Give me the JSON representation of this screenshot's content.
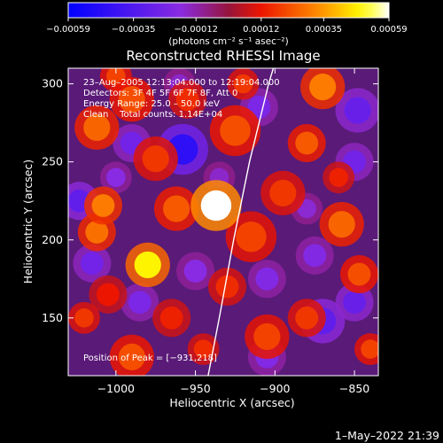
{
  "chart_data": {
    "type": "heatmap",
    "title": "Reconstructed RHESSI Image",
    "xlabel": "Heliocentric X (arcsec)",
    "ylabel": "Heliocentric Y (arcsec)",
    "xlim": [
      -1030,
      -835
    ],
    "ylim": [
      113,
      310
    ],
    "x_ticks": [
      -1000,
      -950,
      -900,
      -850
    ],
    "x_tick_labels": [
      "−1000",
      "−950",
      "−900",
      "−850"
    ],
    "y_ticks": [
      150,
      200,
      250,
      300
    ],
    "y_tick_labels": [
      "150",
      "200",
      "250",
      "300"
    ],
    "colorbar": {
      "range": [
        -0.00059,
        0.00059
      ],
      "ticks": [
        -0.00059,
        -0.00035,
        -0.00012,
        0.00012,
        0.00035,
        0.00059
      ],
      "tick_labels": [
        "−0.00059",
        "−0.00035",
        "−0.00012",
        "0.00012",
        "0.00035",
        "0.00059"
      ],
      "unit": "(photons cm⁻² s⁻¹ asec⁻²)",
      "colors": [
        "#0000ff",
        "#8a2be2",
        "#ff0000",
        "#ff8c00",
        "#ffff00",
        "#ffffff"
      ]
    },
    "annotations": [
      "23–Aug–2005 12:13:04.000 to 12:19:04.000",
      "Detectors: 3F 4F 5F 6F 7F 8F, Att 0",
      "Energy Range: 25.0 – 50.0 keV",
      "Clean    Total counts: 1.14E+04"
    ],
    "peak_label": "Position of Peak = [−931,218]",
    "peak": [
      -931,
      218
    ],
    "limb_curve": [
      [
        -942,
        113
      ],
      [
        -935,
        150
      ],
      [
        -926,
        200
      ],
      [
        -916,
        250
      ],
      [
        -904,
        300
      ],
      [
        -901,
        310
      ]
    ],
    "blobs": [
      {
        "x": -937,
        "y": 222,
        "r": 16,
        "value": 0.00059
      },
      {
        "x": -980,
        "y": 184,
        "r": 14,
        "value": 0.00048
      },
      {
        "x": -1008,
        "y": 222,
        "r": 12,
        "value": 0.0003
      },
      {
        "x": -1012,
        "y": 205,
        "r": 12,
        "value": 0.00028
      },
      {
        "x": -990,
        "y": 290,
        "r": 14,
        "value": 0.00022
      },
      {
        "x": -1012,
        "y": 272,
        "r": 14,
        "value": 0.00026
      },
      {
        "x": -975,
        "y": 252,
        "r": 14,
        "value": 0.00018
      },
      {
        "x": -962,
        "y": 220,
        "r": 14,
        "value": 0.00024
      },
      {
        "x": -955,
        "y": 290,
        "r": 12,
        "value": 0.00016
      },
      {
        "x": -925,
        "y": 270,
        "r": 16,
        "value": 0.00022
      },
      {
        "x": -915,
        "y": 202,
        "r": 16,
        "value": 0.0002
      },
      {
        "x": -895,
        "y": 230,
        "r": 14,
        "value": 0.00018
      },
      {
        "x": -870,
        "y": 298,
        "r": 14,
        "value": 0.0003
      },
      {
        "x": -880,
        "y": 262,
        "r": 12,
        "value": 0.00024
      },
      {
        "x": -858,
        "y": 210,
        "r": 14,
        "value": 0.00026
      },
      {
        "x": -847,
        "y": 178,
        "r": 12,
        "value": 0.00022
      },
      {
        "x": -905,
        "y": 138,
        "r": 14,
        "value": 0.0002
      },
      {
        "x": -880,
        "y": 150,
        "r": 12,
        "value": 0.00018
      },
      {
        "x": -965,
        "y": 150,
        "r": 12,
        "value": 0.00014
      },
      {
        "x": -990,
        "y": 125,
        "r": 14,
        "value": 0.00022
      },
      {
        "x": -1020,
        "y": 150,
        "r": 10,
        "value": 0.00018
      },
      {
        "x": -930,
        "y": 170,
        "r": 12,
        "value": 0.00016
      },
      {
        "x": -840,
        "y": 130,
        "r": 10,
        "value": 0.0002
      },
      {
        "x": -945,
        "y": 130,
        "r": 10,
        "value": 0.00016
      },
      {
        "x": -1000,
        "y": 305,
        "r": 10,
        "value": 0.0002
      },
      {
        "x": -920,
        "y": 300,
        "r": 10,
        "value": 0.00018
      },
      {
        "x": -1005,
        "y": 165,
        "r": 12,
        "value": 0.00012
      },
      {
        "x": -860,
        "y": 240,
        "r": 10,
        "value": 0.00014
      },
      {
        "x": -958,
        "y": 258,
        "r": 16,
        "value": -0.00045
      },
      {
        "x": -1023,
        "y": 225,
        "r": 12,
        "value": -0.0003
      },
      {
        "x": -990,
        "y": 262,
        "r": 12,
        "value": -0.00025
      },
      {
        "x": -848,
        "y": 283,
        "r": 14,
        "value": -0.00028
      },
      {
        "x": -850,
        "y": 250,
        "r": 12,
        "value": -0.00025
      },
      {
        "x": -870,
        "y": 148,
        "r": 14,
        "value": -0.0003
      },
      {
        "x": -850,
        "y": 160,
        "r": 12,
        "value": -0.00028
      },
      {
        "x": -910,
        "y": 285,
        "r": 12,
        "value": -0.00022
      },
      {
        "x": -905,
        "y": 175,
        "r": 12,
        "value": -0.0002
      },
      {
        "x": -985,
        "y": 160,
        "r": 12,
        "value": -0.00022
      },
      {
        "x": -1015,
        "y": 185,
        "r": 12,
        "value": -0.00025
      },
      {
        "x": -950,
        "y": 180,
        "r": 12,
        "value": -0.00018
      },
      {
        "x": -905,
        "y": 125,
        "r": 12,
        "value": -0.0002
      },
      {
        "x": -935,
        "y": 240,
        "r": 10,
        "value": -0.00015
      },
      {
        "x": -875,
        "y": 190,
        "r": 12,
        "value": -0.0002
      },
      {
        "x": -1000,
        "y": 240,
        "r": 10,
        "value": -0.00018
      },
      {
        "x": -960,
        "y": 300,
        "r": 10,
        "value": -0.00015
      },
      {
        "x": -880,
        "y": 220,
        "r": 10,
        "value": -0.00016
      }
    ],
    "grid": false,
    "legend": "none"
  },
  "footer": {
    "timestamp": "1–May–2022 21:39"
  }
}
